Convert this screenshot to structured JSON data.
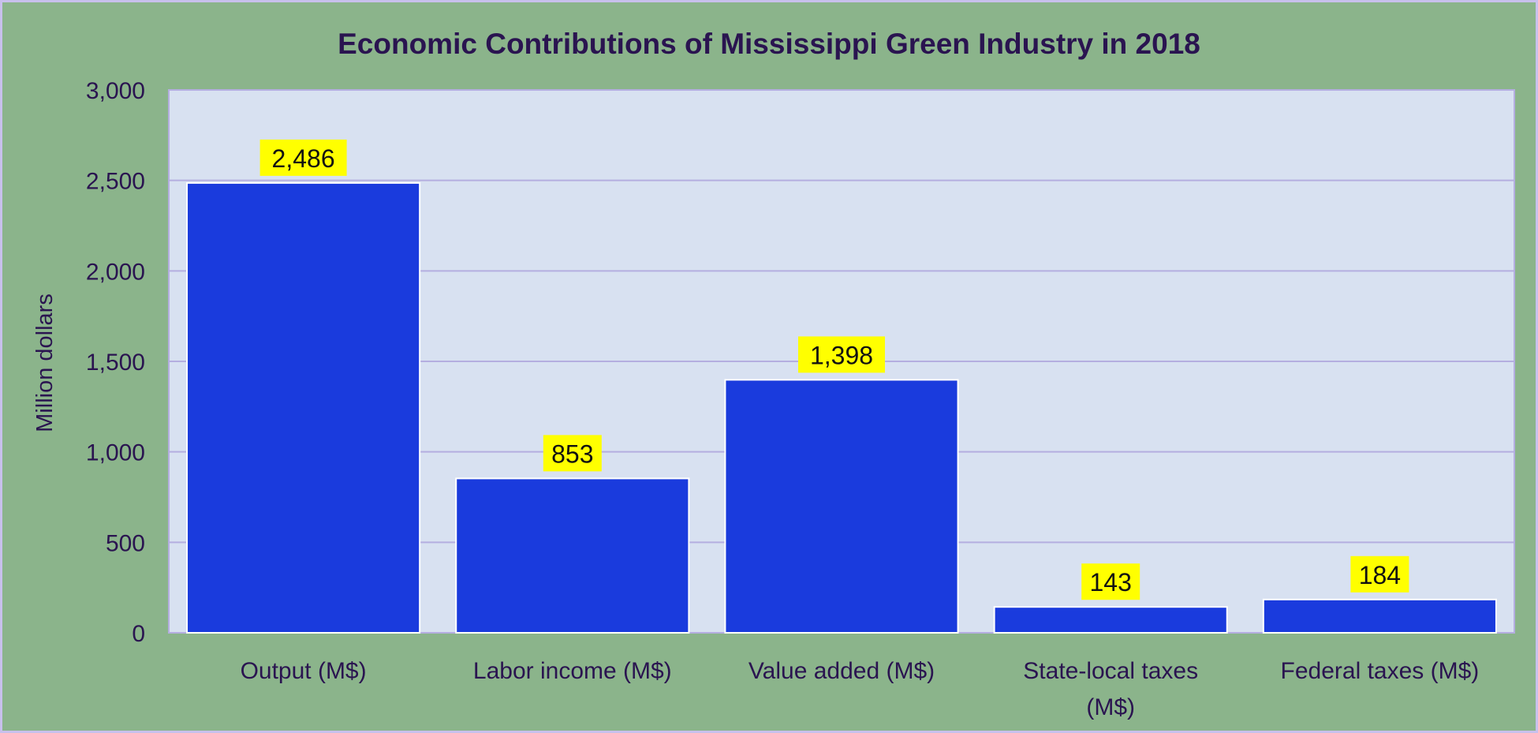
{
  "chart_data": {
    "type": "bar",
    "title": "Economic Contributions of Mississippi Green Industry in 2018",
    "xlabel": "",
    "ylabel": "Million dollars",
    "ylim": [
      0,
      3000
    ],
    "yticks": [
      0,
      500,
      1000,
      1500,
      2000,
      2500,
      3000
    ],
    "ytick_labels": [
      "0",
      "500",
      "1,000",
      "1,500",
      "2,000",
      "2,500",
      "3,000"
    ],
    "categories": [
      [
        "Output (M$)"
      ],
      [
        "Labor income (M$)"
      ],
      [
        "Value added (M$)"
      ],
      [
        "State-local taxes",
        "(M$)"
      ],
      [
        "Federal taxes (M$)"
      ]
    ],
    "values": [
      2486,
      853,
      1398,
      143,
      184
    ],
    "data_labels": [
      "2,486",
      "853",
      "1,398",
      "143",
      "184"
    ],
    "grid": true,
    "legend": "none",
    "colors": {
      "bar": "#1a3bdd",
      "plot_bg": "#d8e1f1",
      "page_bg": "#8bb48b",
      "label_bg": "#ffff00",
      "text": "#2a1450",
      "grid": "#b4aee0"
    }
  }
}
